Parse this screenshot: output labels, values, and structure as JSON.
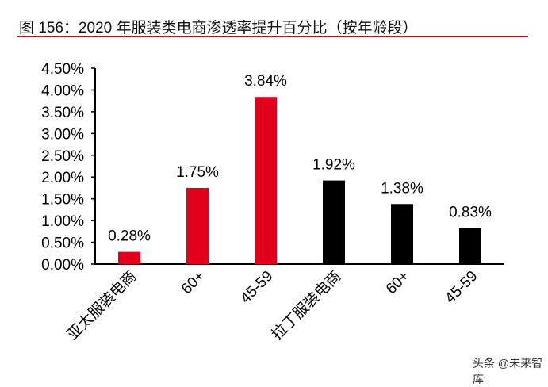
{
  "title": "图 156：2020 年服装类电商渗透率提升百分比（按年龄段）",
  "watermark": "头条 @未来智库",
  "chart_data": {
    "type": "bar",
    "categories": [
      "亚太服装电商",
      "60+",
      "45-59",
      "拉丁服装电商",
      "60+",
      "45-59"
    ],
    "values": [
      0.28,
      1.75,
      3.84,
      1.92,
      1.38,
      0.83
    ],
    "data_labels": [
      "0.28%",
      "1.75%",
      "3.84%",
      "1.92%",
      "1.38%",
      "0.83%"
    ],
    "bar_colors": [
      "#e0001b",
      "#e0001b",
      "#e0001b",
      "#000000",
      "#000000",
      "#000000"
    ],
    "ylim": [
      0,
      4.5
    ],
    "yticks": [
      "0.00%",
      "0.50%",
      "1.00%",
      "1.50%",
      "2.00%",
      "2.50%",
      "3.00%",
      "3.50%",
      "4.00%",
      "4.50%"
    ],
    "grid": false,
    "xlabel": "",
    "ylabel": ""
  }
}
